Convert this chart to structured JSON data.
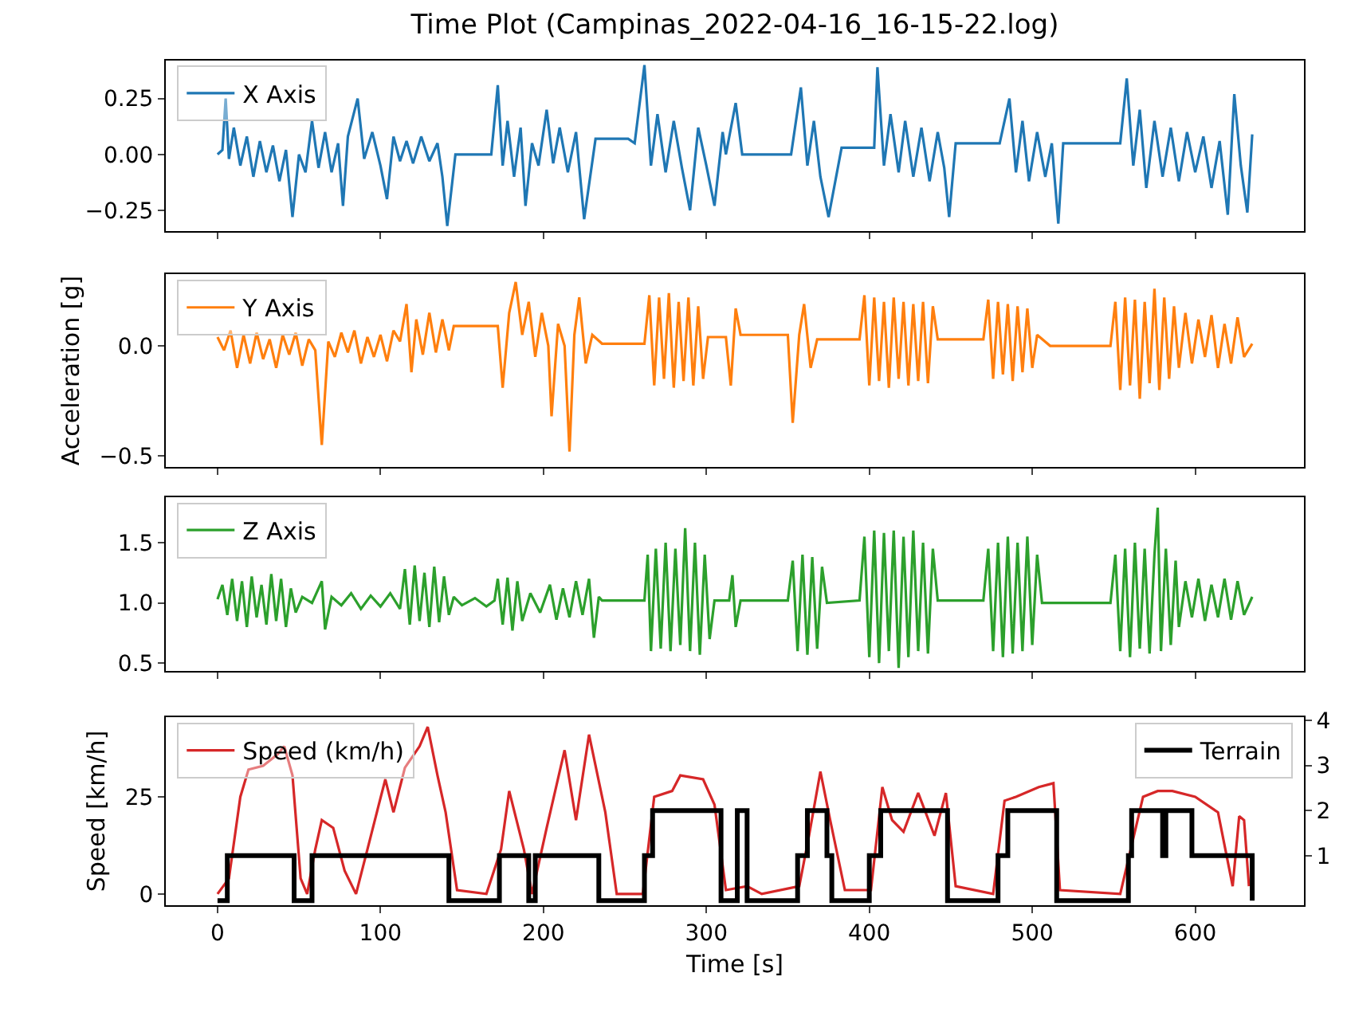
{
  "chart_data": [
    {
      "type": "line",
      "title": "Time Plot (Campinas_2022-04-16_16-15-22.log)",
      "legend": "top left",
      "tick_labels": "y",
      "xlim": [
        -31.75,
        666.75
      ],
      "xticks": [
        0,
        100,
        200,
        300,
        400,
        500,
        600
      ],
      "ylim": [
        -0.343,
        0.42
      ],
      "yticks": [
        {
          "value": -0.25,
          "label": "−0.25"
        },
        {
          "value": 0,
          "label": "0.00"
        },
        {
          "value": 0.25,
          "label": "0.25"
        }
      ],
      "series": [
        {
          "name": "X Axis",
          "color": "#1f77b4",
          "x": [
            0,
            3,
            5,
            7,
            10,
            14,
            18,
            22,
            26,
            30,
            34,
            38,
            42,
            46,
            50,
            54,
            58,
            62,
            66,
            70,
            74,
            77,
            80,
            86,
            90,
            95,
            100,
            104,
            108,
            112,
            116,
            120,
            125,
            130,
            135,
            138,
            141,
            146,
            168,
            172,
            175,
            178,
            182,
            186,
            189,
            193,
            197,
            202,
            206,
            210,
            215,
            220,
            225,
            232,
            252,
            256,
            262,
            266,
            270,
            275,
            280,
            285,
            290,
            295,
            300,
            305,
            310,
            312,
            318,
            322,
            352,
            358,
            362,
            366,
            370,
            375,
            383,
            403,
            405,
            409,
            413,
            418,
            422,
            427,
            432,
            437,
            442,
            446,
            449,
            453,
            480,
            486,
            490,
            494,
            498,
            503,
            508,
            512,
            516,
            519,
            554,
            558,
            562,
            566,
            570,
            575,
            580,
            585,
            590,
            595,
            600,
            605,
            610,
            615,
            620,
            624,
            628,
            632,
            635
          ],
          "values": [
            0,
            0.02,
            0.25,
            -0.02,
            0.12,
            -0.05,
            0.08,
            -0.1,
            0.06,
            -0.08,
            0.04,
            -0.12,
            0.02,
            -0.28,
            0,
            -0.08,
            0.15,
            -0.06,
            0.1,
            -0.08,
            0.05,
            -0.23,
            0.08,
            0.25,
            -0.02,
            0.1,
            -0.05,
            -0.2,
            0.08,
            -0.03,
            0.06,
            -0.04,
            0.08,
            -0.03,
            0.05,
            -0.1,
            -0.32,
            0,
            0,
            0.31,
            -0.05,
            0.15,
            -0.1,
            0.12,
            -0.23,
            0.05,
            -0.05,
            0.2,
            -0.04,
            0.12,
            -0.08,
            0.1,
            -0.29,
            0.07,
            0.07,
            0.05,
            0.4,
            -0.05,
            0.18,
            -0.08,
            0.15,
            -0.06,
            -0.25,
            0.12,
            -0.05,
            -0.23,
            0.1,
            0,
            0.23,
            0,
            0,
            0.3,
            -0.05,
            0.15,
            -0.1,
            -0.28,
            0.03,
            0.03,
            0.39,
            -0.05,
            0.18,
            -0.08,
            0.15,
            -0.1,
            0.12,
            -0.12,
            0.1,
            -0.06,
            -0.28,
            0.05,
            0.05,
            0.25,
            -0.08,
            0.15,
            -0.12,
            0.1,
            -0.1,
            0.05,
            -0.31,
            0.05,
            0.05,
            0.34,
            -0.05,
            0.2,
            -0.15,
            0.15,
            -0.1,
            0.12,
            -0.12,
            0.1,
            -0.08,
            0.08,
            -0.15,
            0.06,
            -0.27,
            0.27,
            -0.05,
            -0.26,
            0.09
          ]
        }
      ]
    },
    {
      "type": "line",
      "ylabel": "Acceleration [g]",
      "legend": "top left",
      "tick_labels": "y",
      "xlim": [
        -31.75,
        666.75
      ],
      "xticks": [
        0,
        100,
        200,
        300,
        400,
        500,
        600
      ],
      "ylim": [
        -0.55,
        0.326
      ],
      "yticks": [
        {
          "value": -0.5,
          "label": "−0.5"
        },
        {
          "value": 0,
          "label": "0.0"
        }
      ],
      "series": [
        {
          "name": "Y Axis",
          "color": "#ff7f0e",
          "x": [
            0,
            4,
            8,
            12,
            16,
            20,
            24,
            28,
            32,
            36,
            40,
            44,
            48,
            52,
            56,
            60,
            64,
            68,
            72,
            76,
            80,
            84,
            88,
            92,
            96,
            100,
            104,
            108,
            112,
            116,
            119,
            122,
            126,
            130,
            134,
            138,
            142,
            145,
            172,
            175,
            179,
            183,
            187,
            191,
            195,
            199,
            203,
            205,
            209,
            213,
            216,
            219,
            222,
            226,
            230,
            236,
            262,
            265,
            268,
            271,
            274,
            277,
            280,
            283,
            286,
            289,
            292,
            295,
            298,
            301,
            312,
            315,
            318,
            321,
            350,
            353,
            357,
            360,
            364,
            368,
            394,
            397,
            400,
            403,
            406,
            409,
            412,
            415,
            418,
            421,
            424,
            427,
            430,
            433,
            436,
            439,
            442,
            470,
            473,
            476,
            479,
            482,
            485,
            488,
            491,
            494,
            497,
            500,
            503,
            511,
            548,
            551,
            554,
            557,
            560,
            563,
            566,
            569,
            572,
            575,
            578,
            581,
            584,
            587,
            590,
            594,
            598,
            602,
            606,
            610,
            614,
            618,
            622,
            626,
            630,
            635
          ],
          "values": [
            0.04,
            -0.02,
            0.07,
            -0.1,
            0.05,
            -0.08,
            0.06,
            -0.06,
            0.03,
            -0.1,
            0.05,
            -0.04,
            0.06,
            -0.09,
            0.03,
            -0.02,
            -0.45,
            0.02,
            -0.05,
            0.06,
            -0.03,
            0.07,
            -0.08,
            0.04,
            -0.05,
            0.05,
            -0.07,
            0.07,
            0.02,
            0.19,
            -0.12,
            0.12,
            -0.04,
            0.15,
            -0.03,
            0.12,
            -0.02,
            0.09,
            0.09,
            -0.19,
            0.15,
            0.29,
            0.05,
            0.2,
            -0.05,
            0.15,
            0,
            -0.32,
            0.1,
            0,
            -0.48,
            0.05,
            0.22,
            -0.08,
            0.05,
            0.01,
            0.01,
            0.23,
            -0.18,
            0.22,
            -0.15,
            0.24,
            -0.19,
            0.2,
            -0.16,
            0.22,
            -0.18,
            0.18,
            -0.15,
            0.04,
            0.04,
            -0.18,
            0.17,
            0.05,
            0.05,
            -0.35,
            0.05,
            0.19,
            -0.1,
            0.03,
            0.03,
            0.23,
            -0.18,
            0.22,
            -0.16,
            0.2,
            -0.19,
            0.22,
            -0.15,
            0.2,
            -0.18,
            0.19,
            -0.16,
            0.2,
            -0.17,
            0.18,
            0.03,
            0.03,
            0.21,
            -0.15,
            0.2,
            -0.13,
            0.19,
            -0.16,
            0.18,
            -0.12,
            0.17,
            -0.1,
            0.05,
            0,
            0,
            0.2,
            -0.2,
            0.22,
            -0.18,
            0.21,
            -0.24,
            0.2,
            -0.17,
            0.26,
            -0.2,
            0.22,
            -0.15,
            0.18,
            -0.1,
            0.15,
            -0.08,
            0.12,
            -0.05,
            0.14,
            -0.1,
            0.1,
            -0.08,
            0.13,
            -0.05,
            0.01
          ]
        }
      ]
    },
    {
      "type": "line",
      "legend": "top left",
      "tick_labels": "y",
      "xlim": [
        -31.75,
        666.75
      ],
      "xticks": [
        0,
        100,
        200,
        300,
        400,
        500,
        600
      ],
      "ylim": [
        0.435,
        1.877
      ],
      "yticks": [
        {
          "value": 0.5,
          "label": "0.5"
        },
        {
          "value": 1,
          "label": "1.0"
        },
        {
          "value": 1.5,
          "label": "1.5"
        }
      ],
      "series": [
        {
          "name": "Z Axis",
          "color": "#2ca02c",
          "x": [
            0,
            3,
            6,
            9,
            12,
            15,
            18,
            21,
            24,
            27,
            30,
            33,
            36,
            39,
            42,
            45,
            48,
            52,
            58,
            64,
            66,
            70,
            76,
            82,
            88,
            94,
            100,
            106,
            112,
            115,
            118,
            121,
            124,
            127,
            130,
            133,
            136,
            139,
            142,
            145,
            150,
            158,
            165,
            170,
            172,
            175,
            178,
            181,
            184,
            187,
            192,
            198,
            204,
            208,
            212,
            216,
            220,
            224,
            228,
            231,
            234,
            236,
            262,
            264,
            266,
            269,
            272,
            275,
            278,
            281,
            284,
            287,
            290,
            293,
            296,
            299,
            302,
            305,
            314,
            316,
            318,
            321,
            350,
            353,
            356,
            359,
            362,
            365,
            368,
            371,
            374,
            394,
            397,
            400,
            403,
            406,
            409,
            412,
            415,
            418,
            421,
            424,
            427,
            430,
            433,
            436,
            439,
            442,
            470,
            473,
            476,
            479,
            482,
            485,
            488,
            491,
            494,
            497,
            500,
            503,
            506,
            548,
            551,
            554,
            557,
            560,
            563,
            566,
            569,
            572,
            575,
            577,
            579,
            582,
            585,
            588,
            590,
            594,
            598,
            602,
            606,
            610,
            614,
            618,
            622,
            626,
            630,
            635
          ],
          "values": [
            1.03,
            1.15,
            0.9,
            1.2,
            0.85,
            1.18,
            0.8,
            1.22,
            0.88,
            1.15,
            0.82,
            1.24,
            0.85,
            1.2,
            0.8,
            1.12,
            0.92,
            1.05,
            1,
            1.18,
            0.78,
            1.05,
            0.98,
            1.08,
            0.95,
            1.06,
            0.97,
            1.08,
            0.95,
            1.28,
            0.82,
            1.31,
            0.85,
            1.25,
            0.8,
            1.3,
            0.84,
            1.22,
            0.9,
            1.05,
            0.98,
            1.04,
            0.97,
            1.02,
            1.2,
            0.82,
            1.21,
            0.77,
            1.18,
            0.85,
            1.08,
            0.92,
            1.15,
            0.86,
            1.12,
            0.88,
            1.18,
            0.9,
            1.2,
            0.71,
            1.05,
            1.02,
            1.02,
            1.4,
            0.6,
            1.45,
            0.62,
            1.5,
            0.6,
            1.45,
            0.65,
            1.62,
            0.6,
            1.5,
            0.57,
            1.4,
            0.7,
            1.02,
            1.02,
            1.23,
            0.8,
            1.02,
            1.02,
            1.35,
            0.6,
            1.4,
            0.57,
            1.38,
            0.62,
            1.3,
            1,
            1.02,
            1.55,
            0.55,
            1.6,
            0.5,
            1.58,
            0.6,
            1.6,
            0.46,
            1.55,
            0.55,
            1.6,
            0.6,
            1.5,
            0.58,
            1.45,
            1.02,
            1.02,
            1.45,
            0.6,
            1.5,
            0.55,
            1.55,
            0.58,
            1.5,
            0.6,
            1.55,
            0.65,
            1.4,
            1,
            1,
            1.4,
            0.6,
            1.45,
            0.55,
            1.5,
            0.62,
            1.45,
            0.58,
            1.4,
            1.79,
            0.6,
            1.45,
            0.65,
            1.35,
            0.8,
            1.18,
            0.88,
            1.2,
            0.85,
            1.15,
            0.88,
            1.2,
            0.86,
            1.18,
            0.9,
            1.05
          ]
        }
      ]
    },
    {
      "type": "line",
      "xlabel": "Time [s]",
      "ylabel": "Speed [km/h]",
      "legend": "top left",
      "xlim": [
        -31.75,
        666.75
      ],
      "xticks": [
        0,
        100,
        200,
        300,
        400,
        500,
        600
      ],
      "ylim": [
        -2.9,
        45.5
      ],
      "yticks": [
        0,
        25
      ],
      "y2lim": [
        -0.1,
        4.07
      ],
      "y2ticks": [
        1,
        2,
        3,
        4
      ],
      "series": [
        {
          "name": "Speed (km/h)",
          "color": "#d62728",
          "x": [
            0,
            7,
            14,
            19,
            28,
            37,
            41,
            46,
            51,
            55,
            60,
            64,
            71,
            78,
            85,
            92,
            99,
            103,
            108,
            115,
            124,
            129,
            135,
            140,
            147,
            165,
            174,
            179,
            188,
            193,
            202,
            213,
            220,
            228,
            238,
            245,
            261,
            268,
            279,
            284,
            298,
            305,
            312,
            325,
            334,
            357,
            363,
            370,
            376,
            385,
            401,
            408,
            414,
            421,
            430,
            440,
            447,
            453,
            476,
            483,
            490,
            504,
            513,
            517,
            554,
            568,
            577,
            586,
            600,
            614,
            623,
            627,
            630,
            633
          ],
          "values": [
            0,
            4,
            25,
            32,
            33,
            36,
            38,
            30.5,
            4,
            0,
            11.5,
            19,
            17,
            6,
            0,
            11.5,
            23,
            29.5,
            21,
            32.5,
            38,
            43,
            30.5,
            21,
            1,
            0,
            11.5,
            26.5,
            11.5,
            0,
            17,
            37,
            19,
            41,
            21,
            0,
            0,
            25,
            26.5,
            30.5,
            29.5,
            23,
            1,
            2,
            0,
            2,
            15,
            31.5,
            19,
            1,
            1,
            27.5,
            19,
            16,
            26,
            15,
            26,
            2,
            0,
            24,
            25,
            27.5,
            28.5,
            1,
            0,
            25,
            26.5,
            26.5,
            25,
            21,
            2,
            20,
            19,
            2
          ]
        },
        {
          "name": "Terrain",
          "color": "#000000",
          "type": "step",
          "axis": "y2",
          "x": [
            0,
            6,
            47,
            58,
            142,
            173,
            191,
            195,
            234,
            262,
            267,
            309,
            319,
            325,
            356,
            362,
            374,
            377,
            400,
            407,
            448,
            479,
            485,
            515,
            559,
            561,
            580,
            582,
            598,
            635
          ],
          "values": [
            0,
            1,
            0,
            1,
            0,
            1,
            0,
            1,
            0,
            1,
            2,
            0,
            2,
            0,
            1,
            2,
            1,
            0,
            1,
            2,
            0,
            1,
            2,
            0,
            1,
            2,
            1,
            2,
            1,
            0
          ]
        }
      ]
    }
  ]
}
